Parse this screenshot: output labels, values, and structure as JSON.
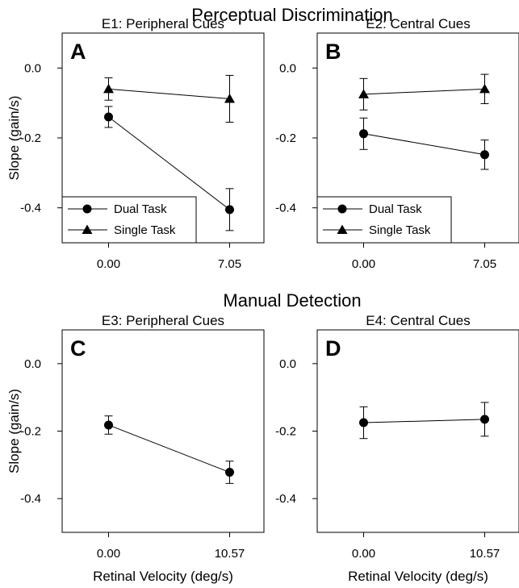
{
  "sections": {
    "top_title": "Perceptual Discrimination",
    "bottom_title": "Manual Detection"
  },
  "chart_data": [
    {
      "type": "line",
      "letter": "A",
      "title": "E1: Peripheral Cues",
      "xlabel": "",
      "ylabel": "Slope (gain/s)",
      "categories": [
        "0.00",
        "7.05"
      ],
      "ylim": [
        -0.5,
        0.1
      ],
      "yticks": [
        "0.0",
        "-0.2",
        "-0.4"
      ],
      "ytick_values": [
        0.0,
        -0.2,
        -0.4
      ],
      "grid": false,
      "legend": "bottom-left",
      "series": [
        {
          "name": "Dual Task",
          "marker": "circle",
          "values": [
            -0.14,
            -0.405
          ],
          "errors": [
            0.03,
            0.06
          ]
        },
        {
          "name": "Single Task",
          "marker": "triangle",
          "values": [
            -0.06,
            -0.088
          ],
          "errors": [
            0.032,
            0.067
          ]
        }
      ]
    },
    {
      "type": "line",
      "letter": "B",
      "title": "E2: Central Cues",
      "xlabel": "",
      "ylabel": "",
      "categories": [
        "0.00",
        "7.05"
      ],
      "ylim": [
        -0.5,
        0.1
      ],
      "yticks": [
        "0.0",
        "-0.2",
        "-0.4"
      ],
      "ytick_values": [
        0.0,
        -0.2,
        -0.4
      ],
      "grid": false,
      "legend": "bottom-left",
      "series": [
        {
          "name": "Dual Task",
          "marker": "circle",
          "values": [
            -0.188,
            -0.248
          ],
          "errors": [
            0.045,
            0.042
          ]
        },
        {
          "name": "Single Task",
          "marker": "triangle",
          "values": [
            -0.075,
            -0.06
          ],
          "errors": [
            0.045,
            0.042
          ]
        }
      ]
    },
    {
      "type": "line",
      "letter": "C",
      "title": "E3: Peripheral Cues",
      "xlabel": "Retinal Velocity (deg/s)",
      "ylabel": "Slope (gain/s)",
      "categories": [
        "0.00",
        "10.57"
      ],
      "ylim": [
        -0.5,
        0.1
      ],
      "yticks": [
        "0.0",
        "-0.2",
        "-0.4"
      ],
      "ytick_values": [
        0.0,
        -0.2,
        -0.4
      ],
      "grid": false,
      "legend": "none",
      "series": [
        {
          "name": "",
          "marker": "circle",
          "values": [
            -0.182,
            -0.322
          ],
          "errors": [
            0.027,
            0.033
          ]
        }
      ]
    },
    {
      "type": "line",
      "letter": "D",
      "title": "E4: Central Cues",
      "xlabel": "Retinal Velocity (deg/s)",
      "ylabel": "",
      "categories": [
        "0.00",
        "10.57"
      ],
      "ylim": [
        -0.5,
        0.1
      ],
      "yticks": [
        "0.0",
        "-0.2",
        "-0.4"
      ],
      "ytick_values": [
        0.0,
        -0.2,
        -0.4
      ],
      "grid": false,
      "legend": "none",
      "series": [
        {
          "name": "",
          "marker": "circle",
          "values": [
            -0.175,
            -0.165
          ],
          "errors": [
            0.047,
            0.05
          ]
        }
      ]
    }
  ]
}
